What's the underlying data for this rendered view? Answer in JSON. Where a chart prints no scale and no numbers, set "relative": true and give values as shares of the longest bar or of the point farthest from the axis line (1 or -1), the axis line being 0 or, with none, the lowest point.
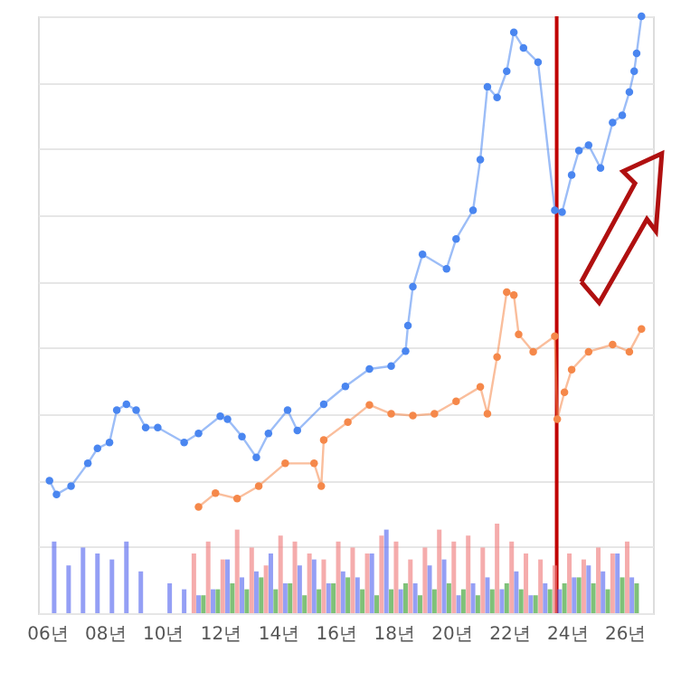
{
  "chart_data": {
    "type": "line",
    "relative": true,
    "grid": "y",
    "marker": "circle",
    "line_style": "solid",
    "xlim": [
      "2006-01",
      "2026-09"
    ],
    "xticks": [
      {
        "value": "2006-01-01",
        "label": "06년"
      },
      {
        "value": "2008-01-01",
        "label": "08년"
      },
      {
        "value": "2010-01-01",
        "label": "10년"
      },
      {
        "value": "2012-01-01",
        "label": "12년"
      },
      {
        "value": "2014-01-01",
        "label": "14년"
      },
      {
        "value": "2016-01-01",
        "label": "16년"
      },
      {
        "value": "2018-01-01",
        "label": "18년"
      },
      {
        "value": "2020-01-01",
        "label": "20년"
      },
      {
        "value": "2022-01-01",
        "label": "22년"
      },
      {
        "value": "2024-01-01",
        "label": "24년"
      },
      {
        "value": "2026-01-01",
        "label": "26년"
      }
    ],
    "ref_lines": [
      {
        "axis": "x",
        "value": "2023-08-25",
        "color": "#c00000"
      }
    ],
    "series": [
      {
        "type": "bar",
        "color": "#5a6cf0",
        "x": [
          "2006-04",
          "2006-10",
          "2007-04",
          "2007-10",
          "2008-04",
          "2008-10",
          "2009-04",
          "2009-10",
          "2010-04",
          "2010-10",
          "2011-04",
          "2011-10",
          "2012-04",
          "2012-10",
          "2013-04",
          "2013-10",
          "2014-04",
          "2014-10",
          "2015-04",
          "2015-10",
          "2016-04",
          "2016-10",
          "2017-04",
          "2017-10",
          "2018-04",
          "2018-10",
          "2019-04",
          "2019-10",
          "2020-04",
          "2020-10",
          "2021-04",
          "2021-10",
          "2022-04",
          "2022-10",
          "2023-04",
          "2023-10",
          "2024-04",
          "2024-10",
          "2025-04",
          "2025-10",
          "2026-04"
        ],
        "values": [
          0.12,
          0.08,
          0.11,
          0.1,
          0.09,
          0.12,
          0.07,
          0,
          0.05,
          0.04,
          0.03,
          0.04,
          0.09,
          0.06,
          0.07,
          0.1,
          0.05,
          0.08,
          0.09,
          0.05,
          0.07,
          0.06,
          0.1,
          0.14,
          0.04,
          0.05,
          0.08,
          0.09,
          0.03,
          0.05,
          0.06,
          0.04,
          0.07,
          0.03,
          0.05,
          0.04,
          0.06,
          0.08,
          0.07,
          0.1,
          0.06
        ]
      },
      {
        "type": "bar",
        "color": "#f08080",
        "x": [
          "2011-02",
          "2011-08",
          "2012-02",
          "2012-08",
          "2013-02",
          "2013-08",
          "2014-02",
          "2014-08",
          "2015-02",
          "2015-08",
          "2016-02",
          "2016-08",
          "2017-02",
          "2017-08",
          "2018-02",
          "2018-08",
          "2019-02",
          "2019-08",
          "2020-02",
          "2020-08",
          "2021-02",
          "2021-08",
          "2022-02",
          "2022-08",
          "2023-02",
          "2023-08",
          "2024-02",
          "2024-08",
          "2025-02",
          "2025-08",
          "2026-02"
        ],
        "values": [
          0.1,
          0.12,
          0.09,
          0.14,
          0.11,
          0.08,
          0.13,
          0.12,
          0.1,
          0.09,
          0.12,
          0.11,
          0.1,
          0.13,
          0.12,
          0.09,
          0.11,
          0.14,
          0.12,
          0.13,
          0.11,
          0.15,
          0.12,
          0.1,
          0.09,
          0.08,
          0.1,
          0.09,
          0.11,
          0.1,
          0.12
        ]
      },
      {
        "type": "bar",
        "color": "#3aa030",
        "x": [
          "2011-06",
          "2011-12",
          "2012-06",
          "2012-12",
          "2013-06",
          "2013-12",
          "2014-06",
          "2014-12",
          "2015-06",
          "2015-12",
          "2016-06",
          "2016-12",
          "2017-06",
          "2017-12",
          "2018-06",
          "2018-12",
          "2019-06",
          "2019-12",
          "2020-06",
          "2020-12",
          "2021-06",
          "2021-12",
          "2022-06",
          "2022-12",
          "2023-06",
          "2023-12",
          "2024-06",
          "2024-12",
          "2025-06",
          "2025-12",
          "2026-06"
        ],
        "values": [
          0.03,
          0.04,
          0.05,
          0.04,
          0.06,
          0.04,
          0.05,
          0.03,
          0.04,
          0.05,
          0.06,
          0.04,
          0.03,
          0.04,
          0.05,
          0.03,
          0.04,
          0.05,
          0.04,
          0.03,
          0.04,
          0.05,
          0.04,
          0.03,
          0.04,
          0.05,
          0.06,
          0.05,
          0.04,
          0.06,
          0.05
        ]
      },
      {
        "color": "#4a86f0",
        "x": [
          "2006-02",
          "2006-05",
          "2006-11",
          "2007-06",
          "2007-10",
          "2008-03",
          "2008-06",
          "2008-10",
          "2009-02",
          "2009-06",
          "2009-11",
          "2010-10",
          "2011-04",
          "2012-01",
          "2012-04",
          "2012-10",
          "2013-04",
          "2013-09",
          "2014-05",
          "2014-09",
          "2015-08",
          "2016-05",
          "2017-03",
          "2017-12",
          "2018-06",
          "2018-07",
          "2018-09",
          "2019-01",
          "2019-11",
          "2020-03",
          "2020-10",
          "2021-01",
          "2021-04",
          "2021-08",
          "2021-12",
          "2022-03",
          "2022-07",
          "2023-01",
          "2023-08",
          "2023-11",
          "2024-03",
          "2024-06",
          "2024-10",
          "2025-03",
          "2025-08",
          "2025-12",
          "2026-03",
          "2026-05",
          "2026-06",
          "2026-08"
        ],
        "values": [
          0.222,
          0.199,
          0.213,
          0.251,
          0.276,
          0.286,
          0.34,
          0.35,
          0.34,
          0.311,
          0.311,
          0.286,
          0.301,
          0.33,
          0.325,
          0.296,
          0.261,
          0.301,
          0.34,
          0.306,
          0.35,
          0.38,
          0.409,
          0.414,
          0.439,
          0.482,
          0.547,
          0.601,
          0.577,
          0.627,
          0.675,
          0.76,
          0.882,
          0.864,
          0.908,
          0.973,
          0.947,
          0.923,
          0.675,
          0.672,
          0.734,
          0.775,
          0.784,
          0.746,
          0.822,
          0.834,
          0.873,
          0.908,
          0.938,
          1.0
        ]
      },
      {
        "color": "#f5884a",
        "x": [
          "2011-04",
          "2011-11",
          "2012-08",
          "2013-05",
          "2014-04",
          "2015-04",
          "2015-07",
          "2015-08",
          "2016-06",
          "2017-03",
          "2017-12",
          "2018-09",
          "2019-06",
          "2020-03",
          "2021-01",
          "2021-04",
          "2021-08",
          "2021-12",
          "2022-03",
          "2022-05",
          "2022-11",
          "2023-08",
          "2023-09",
          "2023-12",
          "2024-03",
          "2024-10",
          "2025-08",
          "2026-03",
          "2026-08"
        ],
        "values": [
          0.178,
          0.201,
          0.192,
          0.213,
          0.251,
          0.251,
          0.213,
          0.29,
          0.32,
          0.349,
          0.334,
          0.331,
          0.334,
          0.355,
          0.379,
          0.334,
          0.429,
          0.538,
          0.533,
          0.467,
          0.438,
          0.464,
          0.325,
          0.37,
          0.408,
          0.438,
          0.45,
          0.438,
          0.476
        ]
      }
    ]
  }
}
